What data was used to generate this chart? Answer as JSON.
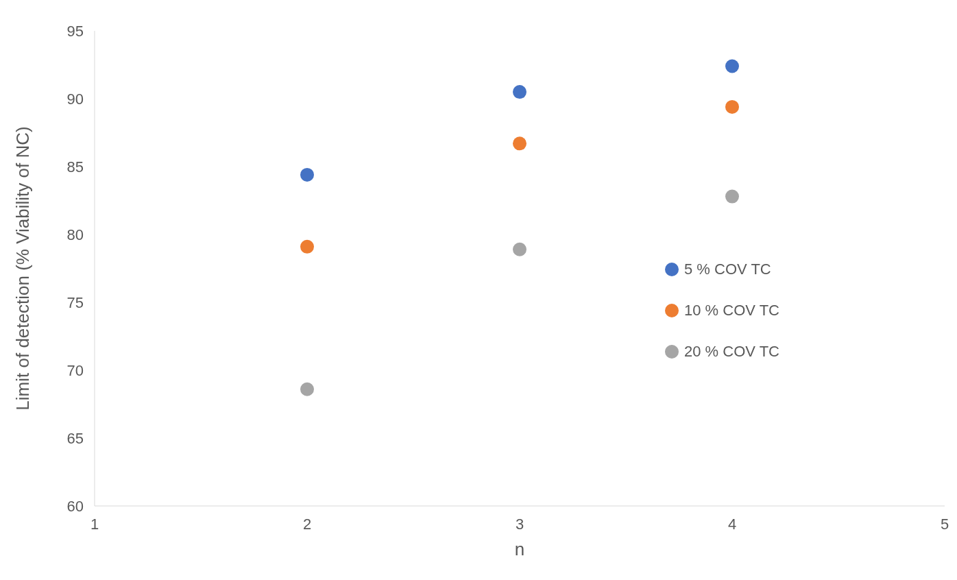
{
  "chart_data": {
    "type": "scatter",
    "xlabel": "n",
    "ylabel": "Limit of detection (% Viability of NC)",
    "x": [
      2,
      3,
      4
    ],
    "series": [
      {
        "name": "5 % COV TC",
        "color": "#4472c4",
        "values": [
          84.4,
          90.5,
          92.4
        ]
      },
      {
        "name": "10 % COV TC",
        "color": "#ed7d31",
        "values": [
          79.1,
          86.7,
          89.4
        ]
      },
      {
        "name": "20 % COV TC",
        "color": "#a5a5a5",
        "values": [
          68.6,
          78.9,
          82.8
        ]
      }
    ],
    "xlim": [
      1,
      5
    ],
    "xticks": [
      1,
      2,
      3,
      4,
      5
    ],
    "ylim": [
      60,
      95
    ],
    "yticks": [
      60,
      65,
      70,
      75,
      80,
      85,
      90,
      95
    ],
    "grid": false,
    "legend": "right",
    "marker": "circle"
  }
}
